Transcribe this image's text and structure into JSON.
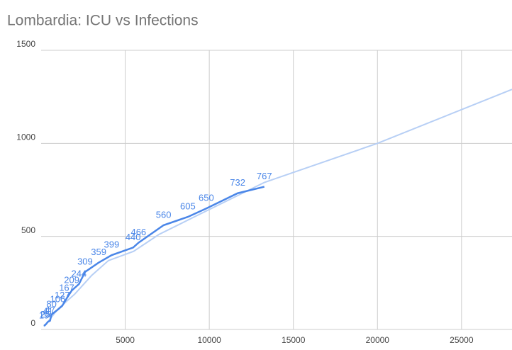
{
  "chart_data": {
    "type": "line",
    "title": "Lombardia: ICU vs Infections",
    "xlim": [
      0,
      28000
    ],
    "xticks": [
      5000,
      10000,
      15000,
      20000,
      25000
    ],
    "ylim": [
      0,
      1500
    ],
    "yticks": [
      0,
      500,
      1000,
      1500
    ],
    "grid": true,
    "series": [
      {
        "color": "#4a86e8",
        "x": [
          172,
          240,
          258,
          403,
          531,
          615,
          984,
          1254,
          1520,
          1820,
          2251,
          2612,
          3420,
          4189,
          5469,
          5791,
          7280,
          8725,
          9820,
          11685,
          13272
        ],
        "values": [
          19,
          25,
          25,
          41,
          47,
          80,
          106,
          127,
          167,
          209,
          244,
          309,
          359,
          399,
          440,
          466,
          560,
          605,
          650,
          732,
          767
        ],
        "data_labels": true
      },
      {
        "color": "#b7cff5",
        "x": [
          172,
          1000,
          2000,
          3000,
          4000,
          5500,
          7000,
          9000,
          13272,
          20000,
          28000
        ],
        "values": [
          15,
          110,
          190,
          290,
          370,
          420,
          510,
          600,
          790,
          1000,
          1290
        ],
        "data_labels": false
      }
    ]
  }
}
